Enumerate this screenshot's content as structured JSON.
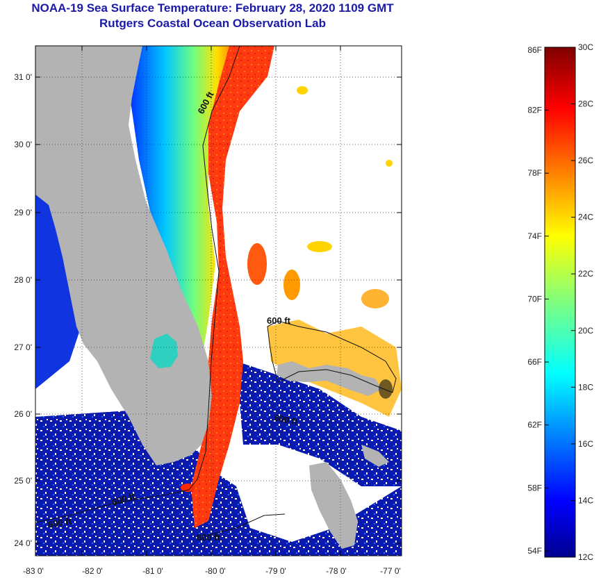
{
  "title": "NOAA-19 Sea Surface Temperature:  February 28, 2020 1109 GMT",
  "subtitle": "Rutgers Coastal Ocean Observation Lab",
  "map": {
    "lon_labels": [
      "-83 0'",
      "-82 0'",
      "-81 0'",
      "-80 0'",
      "-79 0'",
      "-78 0'",
      "-77 0'"
    ],
    "lat_labels": [
      "31 0'",
      "30 0'",
      "29 0'",
      "28 0'",
      "27 0'",
      "26 0'",
      "25 0'",
      "24 0'"
    ],
    "contour_labels": [
      "600 ft",
      "600 ft",
      "600 ft",
      "600 ft",
      "600 ft",
      "600 ft"
    ],
    "land_color": "#b3b3b3",
    "cloud_color": "#ffffff"
  },
  "colorbar": {
    "fahrenheit_labels": [
      "86F",
      "82F",
      "78F",
      "74F",
      "70F",
      "66F",
      "62F",
      "58F",
      "54F"
    ],
    "celsius_labels": [
      "30C",
      "28C",
      "26C",
      "24C",
      "22C",
      "20C",
      "18C",
      "16C",
      "14C",
      "12C"
    ],
    "range_c": [
      12,
      30
    ],
    "colormap": "jet"
  }
}
